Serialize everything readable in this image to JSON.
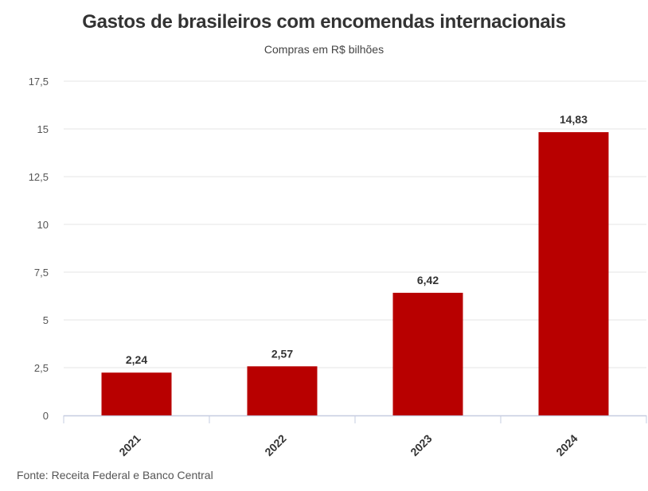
{
  "chart_data": {
    "type": "bar",
    "title": "Gastos de brasileiros com encomendas internacionais",
    "subtitle": "Compras em R$ bilhões",
    "categories": [
      "2021",
      "2022",
      "2023",
      "2024"
    ],
    "values": [
      2.24,
      2.57,
      6.42,
      14.83
    ],
    "data_labels": [
      "2,24",
      "2,57",
      "6,42",
      "14,83"
    ],
    "y_ticks": [
      0,
      2.5,
      5,
      7.5,
      10,
      12.5,
      15,
      17.5
    ],
    "y_tick_labels": [
      "0",
      "2,5",
      "5",
      "7,5",
      "10",
      "12,5",
      "15",
      "17,5"
    ],
    "ylim": [
      0,
      17.5
    ],
    "xlabel": "",
    "ylabel": "",
    "grid": true,
    "legend": "none",
    "bar_color": "#b80000",
    "source": "Fonte: Receita Federal e Banco Central"
  }
}
